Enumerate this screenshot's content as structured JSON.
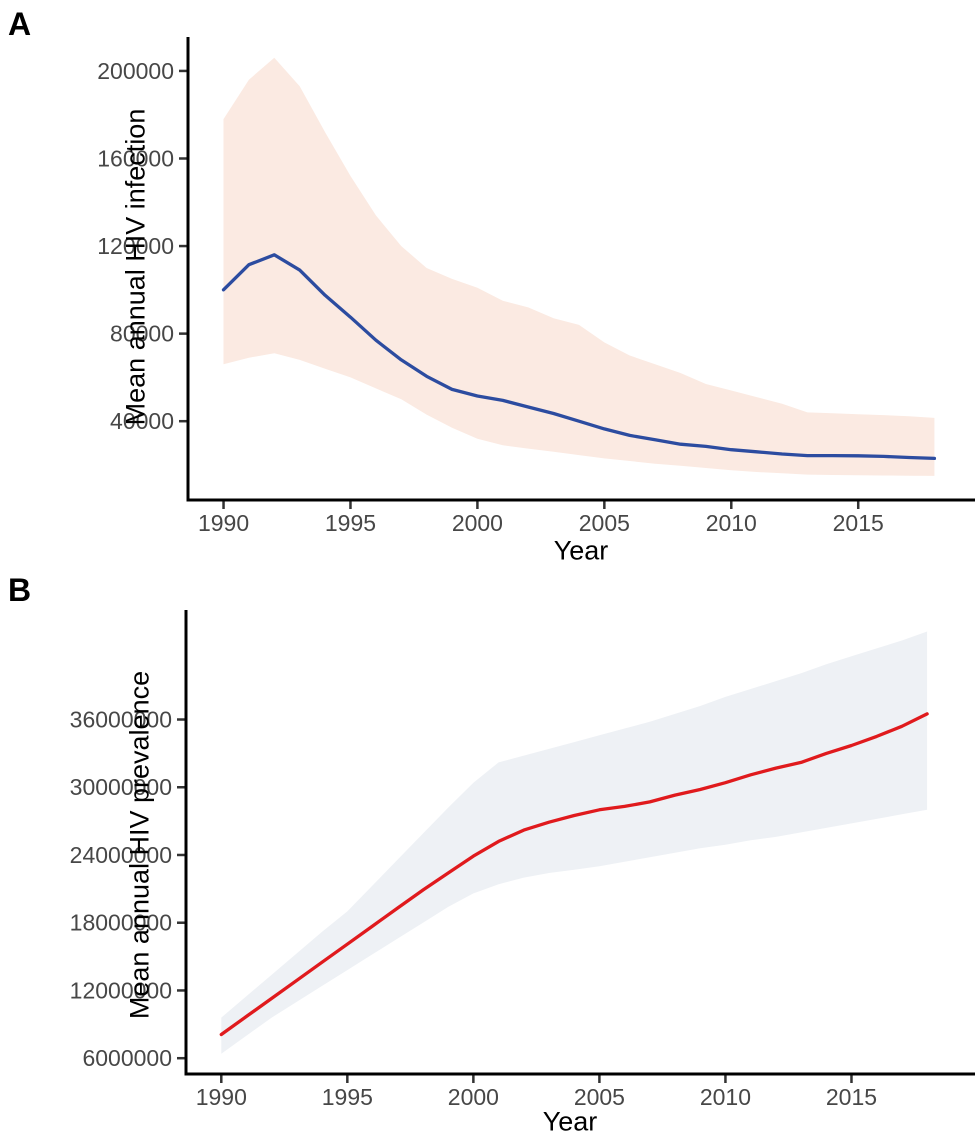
{
  "figure": {
    "background": "#ffffff",
    "axis_color": "#000000",
    "tick_color": "#333333",
    "tick_label_color": "#474747"
  },
  "panels": [
    {
      "label": "A",
      "y_title": "Mean annual HIV infection",
      "x_title": "Year"
    },
    {
      "label": "B",
      "y_title": "Mean annual HIV prevalence",
      "x_title": "Year"
    }
  ],
  "chart_data": [
    {
      "type": "line",
      "panel": "A",
      "xlabel": "Year",
      "ylabel": "Mean annual HIV infection",
      "grid": false,
      "legend": "none",
      "xlim": [
        1988.6,
        2019.6
      ],
      "ylim": [
        4000,
        215500
      ],
      "x_ticks": [
        1990,
        1995,
        2000,
        2005,
        2010,
        2015
      ],
      "x_tick_labels": [
        "1990",
        "1995",
        "2000",
        "2005",
        "2010",
        "2015"
      ],
      "y_ticks": [
        40000,
        80000,
        120000,
        160000,
        200000
      ],
      "y_tick_labels": [
        "40000",
        "80000",
        "120000",
        "160000",
        "200000"
      ],
      "x": [
        1990,
        1991,
        1992,
        1993,
        1994,
        1995,
        1996,
        1997,
        1998,
        1999,
        2000,
        2001,
        2002,
        2003,
        2004,
        2005,
        2006,
        2007,
        2008,
        2009,
        2010,
        2011,
        2012,
        2013,
        2014,
        2015,
        2016,
        2017,
        2018
      ],
      "series": [
        {
          "name": "mean annual HIV infection",
          "color": "#2c4ca0",
          "values": [
            100000,
            111500,
            116000,
            109000,
            97500,
            87500,
            77000,
            68000,
            60500,
            54500,
            51500,
            49500,
            46500,
            43500,
            40000,
            36500,
            33500,
            31500,
            29500,
            28500,
            27000,
            26000,
            25000,
            24300,
            24300,
            24200,
            23900,
            23400,
            23000
          ]
        }
      ],
      "band": {
        "name": "uncertainty interval",
        "color": "#fbeae2",
        "upper": [
          178000,
          196000,
          206000,
          193000,
          172000,
          152000,
          134000,
          120000,
          110000,
          105000,
          101000,
          95000,
          92000,
          87000,
          84000,
          76000,
          70000,
          66000,
          62000,
          57000,
          54000,
          51000,
          48000,
          44000,
          43600,
          43200,
          42800,
          42300,
          41500
        ],
        "lower": [
          66000,
          69000,
          71000,
          68000,
          64000,
          60000,
          55000,
          50000,
          43000,
          37000,
          32000,
          29000,
          27500,
          26000,
          24500,
          23000,
          21800,
          20600,
          19600,
          18600,
          17600,
          16800,
          16200,
          15600,
          15400,
          15300,
          15200,
          15100,
          15000
        ]
      }
    },
    {
      "type": "line",
      "panel": "B",
      "xlabel": "Year",
      "ylabel": "Mean annual HIV prevalence",
      "grid": false,
      "legend": "none",
      "xlim": [
        1988.6,
        2019.9
      ],
      "ylim": [
        4600000,
        45700000
      ],
      "x_ticks": [
        1990,
        1995,
        2000,
        2005,
        2010,
        2015
      ],
      "x_tick_labels": [
        "1990",
        "1995",
        "2000",
        "2005",
        "2010",
        "2015"
      ],
      "y_ticks": [
        6000000,
        12000000,
        18000000,
        24000000,
        30000000,
        36000000
      ],
      "y_tick_labels": [
        "6000000",
        "12000000",
        "18000000",
        "24000000",
        "30000000",
        "36000000"
      ],
      "x": [
        1990,
        1991,
        1992,
        1993,
        1994,
        1995,
        1996,
        1997,
        1998,
        1999,
        2000,
        2001,
        2002,
        2003,
        2004,
        2005,
        2006,
        2007,
        2008,
        2009,
        2010,
        2011,
        2012,
        2013,
        2014,
        2015,
        2016,
        2017,
        2018
      ],
      "series": [
        {
          "name": "mean annual HIV prevalence",
          "color": "#e01a1d",
          "values": [
            8100000,
            9700000,
            11300000,
            12900000,
            14500000,
            16100000,
            17700000,
            19300000,
            20900000,
            22400000,
            23900000,
            25200000,
            26200000,
            26900000,
            27500000,
            28000000,
            28300000,
            28700000,
            29300000,
            29800000,
            30400000,
            31100000,
            31700000,
            32200000,
            33000000,
            33700000,
            34500000,
            35400000,
            36500000
          ]
        }
      ],
      "band": {
        "name": "uncertainty interval",
        "color": "#eef1f5",
        "upper": [
          9600000,
          11500000,
          13400000,
          15300000,
          17200000,
          19000000,
          21300000,
          23600000,
          25900000,
          28200000,
          30400000,
          32200000,
          32800000,
          33400000,
          34000000,
          34600000,
          35200000,
          35800000,
          36500000,
          37200000,
          38000000,
          38700000,
          39400000,
          40100000,
          40900000,
          41600000,
          42300000,
          43000000,
          43800000
        ],
        "lower": [
          6400000,
          8000000,
          9600000,
          11000000,
          12400000,
          13800000,
          15200000,
          16600000,
          18000000,
          19400000,
          20600000,
          21400000,
          22000000,
          22400000,
          22700000,
          23000000,
          23400000,
          23800000,
          24200000,
          24600000,
          24900000,
          25300000,
          25600000,
          26000000,
          26400000,
          26800000,
          27200000,
          27600000,
          28000000
        ]
      }
    }
  ]
}
